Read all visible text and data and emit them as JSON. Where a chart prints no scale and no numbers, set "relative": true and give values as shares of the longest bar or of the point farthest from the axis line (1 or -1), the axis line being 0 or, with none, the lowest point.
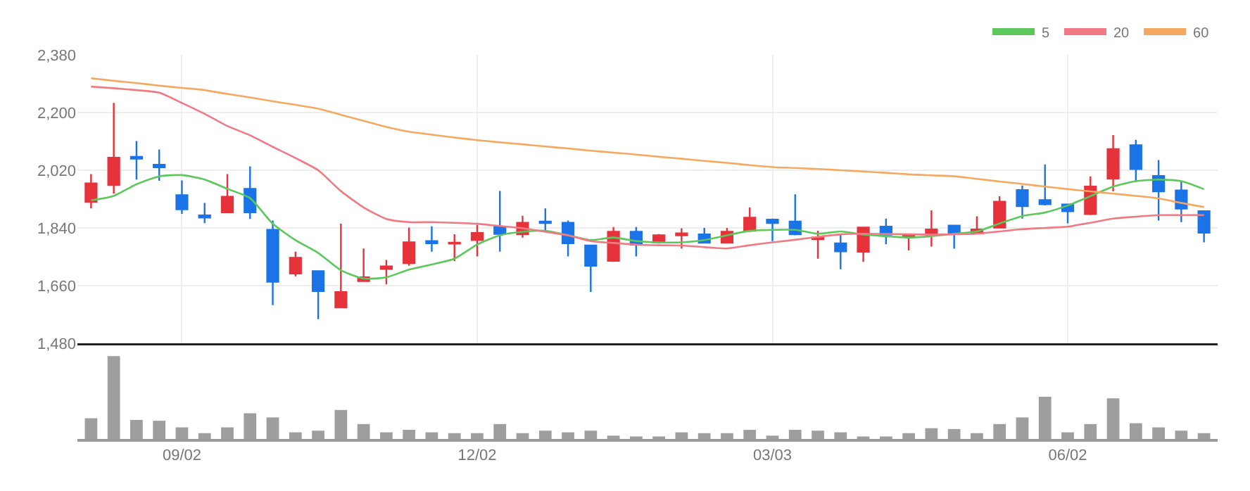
{
  "chart_data": [
    {
      "type": "candlestick",
      "categories": [
        null,
        null,
        null,
        null,
        null,
        null,
        null,
        null,
        null,
        null,
        null,
        null,
        null,
        null,
        null,
        null,
        null,
        null,
        null,
        null,
        null,
        null,
        null,
        null,
        null,
        null,
        null,
        null,
        null,
        null,
        null,
        null,
        null,
        null,
        null,
        null,
        null,
        null,
        null,
        null,
        null,
        null,
        null,
        null,
        null,
        null,
        null,
        null,
        null,
        null
      ],
      "ohlc": [
        [
          1921,
          2008,
          1901,
          1979
        ],
        [
          1974,
          2230,
          1947,
          2059
        ],
        [
          2062,
          2111,
          1991,
          2056
        ],
        [
          2037,
          2085,
          1987,
          2029
        ],
        [
          1942,
          1988,
          1884,
          1898
        ],
        [
          1879,
          1918,
          1855,
          1872
        ],
        [
          1889,
          2008,
          1889,
          1937
        ],
        [
          1962,
          2032,
          1868,
          1889
        ],
        [
          1834,
          1863,
          1599,
          1672
        ],
        [
          1698,
          1766,
          1689,
          1747
        ],
        [
          1705,
          1705,
          1555,
          1643
        ],
        [
          1592,
          1853,
          1592,
          1640
        ],
        [
          1674,
          1776,
          1672,
          1686
        ],
        [
          1712,
          1740,
          1664,
          1720
        ],
        [
          1730,
          1841,
          1722,
          1795
        ],
        [
          1799,
          1845,
          1766,
          1792
        ],
        [
          1791,
          1820,
          1737,
          1794
        ],
        [
          1802,
          1849,
          1751,
          1824
        ],
        [
          1844,
          1955,
          1766,
          1821
        ],
        [
          1820,
          1878,
          1810,
          1856
        ],
        [
          1860,
          1901,
          1828,
          1855
        ],
        [
          1856,
          1863,
          1751,
          1792
        ],
        [
          1785,
          1785,
          1640,
          1722
        ],
        [
          1737,
          1843,
          1734,
          1828
        ],
        [
          1828,
          1843,
          1751,
          1788
        ],
        [
          1795,
          1821,
          1791,
          1817
        ],
        [
          1817,
          1839,
          1776,
          1823
        ],
        [
          1820,
          1840,
          1791,
          1794
        ],
        [
          1794,
          1840,
          1791,
          1828
        ],
        [
          1831,
          1904,
          1828,
          1872
        ],
        [
          1866,
          1869,
          1799,
          1855
        ],
        [
          1860,
          1945,
          1817,
          1820
        ],
        [
          1805,
          1831,
          1744,
          1810
        ],
        [
          1792,
          1822,
          1711,
          1767
        ],
        [
          1766,
          1841,
          1734,
          1841
        ],
        [
          1844,
          1869,
          1789,
          1819
        ],
        [
          1812,
          1822,
          1770,
          1818
        ],
        [
          1819,
          1895,
          1782,
          1835
        ],
        [
          1847,
          1847,
          1775,
          1822
        ],
        [
          1823,
          1876,
          1823,
          1835
        ],
        [
          1841,
          1939,
          1841,
          1922
        ],
        [
          1958,
          1972,
          1869,
          1908
        ],
        [
          1927,
          2038,
          1910,
          1914
        ],
        [
          1913,
          1913,
          1854,
          1892
        ],
        [
          1883,
          2001,
          1880,
          1969
        ],
        [
          1994,
          2130,
          1954,
          2086
        ],
        [
          2098,
          2115,
          1986,
          2024
        ],
        [
          2002,
          2052,
          1863,
          1954
        ],
        [
          1957,
          1986,
          1858,
          1900
        ],
        [
          1892,
          1892,
          1795,
          1825
        ]
      ],
      "series": [
        {
          "name": "5",
          "type": "line",
          "color": "#5cc85c",
          "values": [
            1926,
            1940,
            1976,
            2001,
            2005,
            1991,
            1962,
            1933,
            1853,
            1802,
            1762,
            1708,
            1682,
            1686,
            1710,
            1726,
            1744,
            1788,
            1817,
            1828,
            1831,
            1817,
            1802,
            1810,
            1799,
            1795,
            1795,
            1802,
            1817,
            1831,
            1834,
            1834,
            1822,
            1829,
            1819,
            1814,
            1810,
            1814,
            1822,
            1829,
            1854,
            1877,
            1888,
            1910,
            1939,
            1969,
            1986,
            1991,
            1986,
            1961
          ]
        },
        {
          "name": "20",
          "type": "line",
          "color": "#f07a84",
          "values": [
            2281,
            2276,
            2270,
            2262,
            2230,
            2196,
            2158,
            2129,
            2093,
            2058,
            2020,
            1955,
            1904,
            1868,
            1858,
            1858,
            1856,
            1853,
            1846,
            1839,
            1828,
            1817,
            1799,
            1793,
            1788,
            1786,
            1785,
            1780,
            1776,
            1786,
            1795,
            1803,
            1812,
            1820,
            1822,
            1821,
            1820,
            1819,
            1820,
            1822,
            1829,
            1836,
            1840,
            1844,
            1856,
            1869,
            1875,
            1880,
            1880,
            1880
          ]
        },
        {
          "name": "60",
          "type": "line",
          "color": "#f5a860",
          "values": [
            2307,
            2299,
            2292,
            2284,
            2277,
            2270,
            2258,
            2247,
            2235,
            2224,
            2212,
            2193,
            2174,
            2155,
            2140,
            2131,
            2122,
            2114,
            2107,
            2101,
            2094,
            2088,
            2081,
            2075,
            2069,
            2062,
            2056,
            2049,
            2043,
            2036,
            2030,
            2027,
            2024,
            2020,
            2016,
            2012,
            2007,
            2004,
            2001,
            1993,
            1985,
            1977,
            1969,
            1961,
            1954,
            1947,
            1940,
            1932,
            1918,
            1905
          ]
        }
      ],
      "ylim": [
        1480,
        2380
      ],
      "yticks": [
        {
          "value": 1480,
          "label": "1,480"
        },
        {
          "value": 1660,
          "label": "1,660"
        },
        {
          "value": 1840,
          "label": "1,840"
        },
        {
          "value": 2020,
          "label": "2,020"
        },
        {
          "value": 2200,
          "label": "2,200"
        },
        {
          "value": 2380,
          "label": "2,380"
        }
      ],
      "grid": true,
      "legend": "top right",
      "tick_labels": "y"
    },
    {
      "type": "bar",
      "categories": [
        null,
        null,
        null,
        null,
        "09/02",
        null,
        null,
        null,
        null,
        null,
        null,
        null,
        null,
        null,
        null,
        null,
        null,
        "12/02",
        null,
        null,
        null,
        null,
        null,
        null,
        null,
        null,
        null,
        null,
        null,
        null,
        "03/03",
        null,
        null,
        null,
        null,
        null,
        null,
        null,
        null,
        null,
        null,
        null,
        null,
        "06/02",
        null,
        null,
        null,
        null,
        null,
        null
      ],
      "values": [
        0.25,
        1,
        0.23,
        0.22,
        0.14,
        0.07,
        0.14,
        0.31,
        0.26,
        0.08,
        0.1,
        0.35,
        0.18,
        0.08,
        0.11,
        0.08,
        0.07,
        0.07,
        0.18,
        0.07,
        0.1,
        0.08,
        0.1,
        0.04,
        0.03,
        0.03,
        0.08,
        0.07,
        0.07,
        0.11,
        0.04,
        0.11,
        0.1,
        0.08,
        0.03,
        0.03,
        0.07,
        0.13,
        0.12,
        0.07,
        0.18,
        0.26,
        0.51,
        0.08,
        0.18,
        0.49,
        0.19,
        0.14,
        0.1,
        0.07
      ],
      "color": "#9e9e9e",
      "relative": true,
      "tick_labels": "x"
    }
  ]
}
